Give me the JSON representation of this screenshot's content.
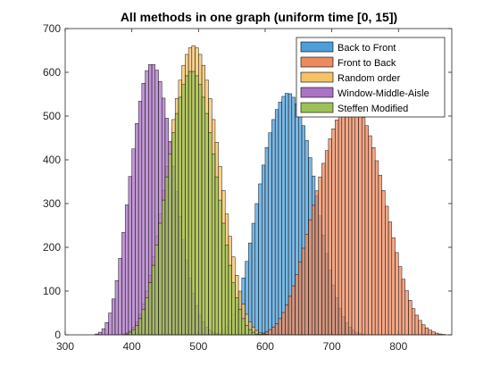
{
  "chart_data": {
    "type": "bar",
    "subtype": "overlapping-histogram",
    "title": "All methods in one graph (uniform time [0, 15])",
    "xlabel": "",
    "ylabel": "",
    "xlim": [
      300,
      880
    ],
    "ylim": [
      0,
      700
    ],
    "xticks": [
      300,
      400,
      500,
      600,
      700,
      800
    ],
    "yticks": [
      0,
      100,
      200,
      300,
      400,
      500,
      600,
      700
    ],
    "grid": false,
    "legend_position": "top-right",
    "bin_width": 5,
    "series": [
      {
        "name": "Back to Front",
        "color": "#4d9fd9",
        "bin_start": 525,
        "values": [
          3,
          6,
          12,
          20,
          32,
          48,
          70,
          97,
          130,
          168,
          210,
          255,
          300,
          345,
          388,
          428,
          462,
          492,
          515,
          532,
          545,
          552,
          551,
          543,
          528,
          506,
          478,
          444,
          405,
          363,
          318,
          272,
          228,
          186,
          148,
          114,
          85,
          61,
          42,
          28,
          18,
          11,
          6,
          3,
          1
        ]
      },
      {
        "name": "Front to Back",
        "color": "#ed8a5f",
        "bin_start": 590,
        "values": [
          2,
          4,
          7,
          12,
          18,
          26,
          37,
          51,
          68,
          88,
          112,
          138,
          167,
          198,
          230,
          263,
          296,
          329,
          361,
          392,
          421,
          448,
          471,
          491,
          507,
          519,
          527,
          530,
          529,
          523,
          512,
          497,
          478,
          455,
          428,
          398,
          365,
          330,
          294,
          258,
          222,
          188,
          156,
          127,
          101,
          79,
          60,
          45,
          33,
          23,
          16,
          11,
          7,
          4,
          2,
          1
        ]
      },
      {
        "name": "Random order",
        "color": "#f5c266",
        "bin_start": 385,
        "values": [
          2,
          5,
          10,
          18,
          30,
          47,
          70,
          100,
          136,
          178,
          225,
          276,
          330,
          385,
          440,
          492,
          540,
          582,
          616,
          641,
          656,
          661,
          656,
          641,
          616,
          582,
          540,
          492,
          440,
          385,
          330,
          276,
          225,
          178,
          136,
          100,
          70,
          47,
          30,
          18,
          10,
          5,
          2,
          1
        ]
      },
      {
        "name": "Window-Middle-Aisle",
        "color": "#ab73c4",
        "bin_start": 345,
        "values": [
          2,
          6,
          14,
          28,
          50,
          82,
          124,
          175,
          234,
          297,
          362,
          425,
          483,
          534,
          575,
          604,
          618,
          618,
          605,
          579,
          541,
          495,
          442,
          385,
          327,
          270,
          217,
          170,
          129,
          95,
          67,
          45,
          29,
          18,
          11,
          6,
          3,
          1
        ]
      },
      {
        "name": "Steffen Modified",
        "color": "#9dc157",
        "bin_start": 390,
        "values": [
          2,
          6,
          12,
          22,
          37,
          58,
          85,
          119,
          159,
          205,
          255,
          308,
          361,
          413,
          462,
          506,
          543,
          572,
          592,
          602,
          602,
          592,
          572,
          543,
          506,
          462,
          413,
          361,
          308,
          255,
          205,
          159,
          119,
          85,
          58,
          37,
          22,
          12,
          6,
          2,
          1
        ]
      }
    ]
  }
}
